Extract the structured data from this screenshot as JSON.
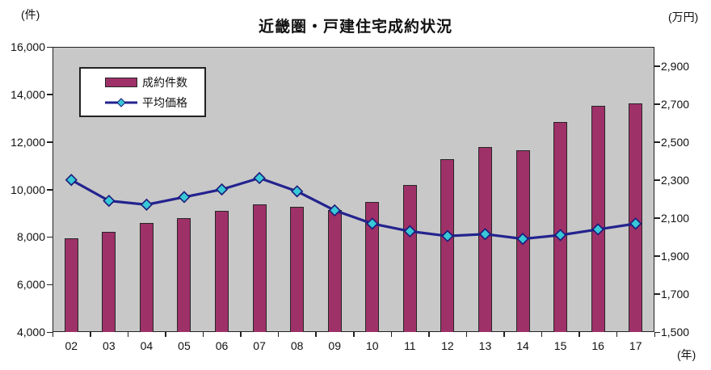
{
  "title": "近畿圏・戸建住宅成約状況",
  "units": {
    "left": "(件)",
    "right": "(万円)",
    "x": "(年)"
  },
  "legend": {
    "bar_label": "成約件数",
    "line_label": "平均価格"
  },
  "colors": {
    "bar_fill": "#9E3168",
    "bar_border": "#262626",
    "line": "#23238F",
    "marker_fill": "#38C8D8",
    "marker_border": "#1B1B7A",
    "plot_bg": "#C8C8C8",
    "axis": "#222222"
  },
  "chart_data": {
    "type": "bar+line dual-axis combo",
    "title": "近畿圏・戸建住宅成約状況",
    "categories": [
      "02",
      "03",
      "04",
      "05",
      "06",
      "07",
      "08",
      "09",
      "10",
      "11",
      "12",
      "13",
      "14",
      "15",
      "16",
      "17"
    ],
    "x_axis": {
      "unit": "年"
    },
    "series": [
      {
        "name": "成約件数",
        "type": "bar",
        "axis": "left",
        "values": [
          7930,
          8230,
          8600,
          8790,
          9110,
          9380,
          9260,
          9150,
          9460,
          10170,
          11260,
          11790,
          11650,
          12830,
          13520,
          13610
        ]
      },
      {
        "name": "平均価格",
        "type": "line",
        "axis": "right",
        "values": [
          2300,
          2190,
          2170,
          2210,
          2250,
          2310,
          2240,
          2140,
          2070,
          2030,
          2005,
          2015,
          1990,
          2010,
          2040,
          2070
        ]
      }
    ],
    "left_axis": {
      "unit": "件",
      "min": 4000,
      "max": 16000,
      "tick_interval": 2000,
      "tick_values": [
        16000,
        14000,
        12000,
        10000,
        8000,
        6000,
        4000
      ],
      "tick_labels": [
        "16,000",
        "14,000",
        "12,000",
        "10,000",
        "8,000",
        "6,000",
        "4,000"
      ]
    },
    "right_axis": {
      "unit": "万円",
      "min": 1500,
      "max": 3000,
      "tick_interval": 200,
      "tick_values": [
        2900,
        2700,
        2500,
        2300,
        2100,
        1900,
        1700,
        1500
      ],
      "tick_labels": [
        "2,900",
        "2,700",
        "2,500",
        "2,300",
        "2,100",
        "1,900",
        "1,700",
        "1,500"
      ]
    },
    "gridlines": false,
    "legend_position": "top-left-inside"
  }
}
